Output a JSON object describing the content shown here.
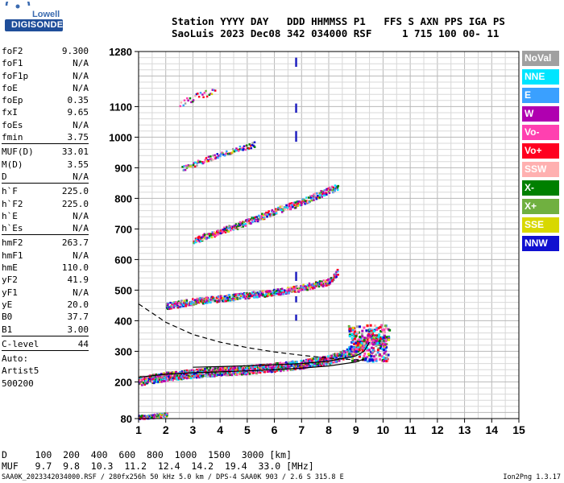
{
  "logo": {
    "brand": "Lowell",
    "product": "DIGISONDE"
  },
  "header": {
    "line1": "Station YYYY DAY   DDD HHMMSS P1   FFS S AXN PPS IGA PS",
    "line2": "SaoLuis 2023 Dec08 342 034000 RSF     1 715 100 00- 11"
  },
  "params": [
    {
      "label": "foF2",
      "value": "9.300"
    },
    {
      "label": "foF1",
      "value": "N/A"
    },
    {
      "label": "foF1p",
      "value": "N/A"
    },
    {
      "label": "foE",
      "value": "N/A"
    },
    {
      "label": "foEp",
      "value": "0.35"
    },
    {
      "label": "fxI",
      "value": "9.65"
    },
    {
      "label": "foEs",
      "value": "N/A"
    },
    {
      "label": "fmin",
      "value": "3.75"
    },
    {
      "label": "MUF(D)",
      "value": "33.01"
    },
    {
      "label": "M(D)",
      "value": "3.55"
    },
    {
      "label": "D",
      "value": "N/A"
    },
    {
      "label": "h`F",
      "value": "225.0"
    },
    {
      "label": "h`F2",
      "value": "225.0"
    },
    {
      "label": "h`E",
      "value": "N/A"
    },
    {
      "label": "h`Es",
      "value": "N/A"
    },
    {
      "label": "hmF2",
      "value": "263.7"
    },
    {
      "label": "hmF1",
      "value": "N/A"
    },
    {
      "label": "hmE",
      "value": "110.0"
    },
    {
      "label": "yF2",
      "value": "41.9"
    },
    {
      "label": "yF1",
      "value": "N/A"
    },
    {
      "label": "yE",
      "value": "20.0"
    },
    {
      "label": "B0",
      "value": "37.7"
    },
    {
      "label": "B1",
      "value": "3.00"
    },
    {
      "label": "C-level",
      "value": "44"
    }
  ],
  "auto": {
    "line1": "Auto:",
    "line2": "Artist5",
    "line3": "500200"
  },
  "legend": [
    {
      "label": "NoVal",
      "color": "#a0a0a0"
    },
    {
      "label": "NNE",
      "color": "#00e5ff"
    },
    {
      "label": "E",
      "color": "#3aa0ff"
    },
    {
      "label": "W",
      "color": "#b000b0"
    },
    {
      "label": "Vo-",
      "color": "#ff40b0"
    },
    {
      "label": "Vo+",
      "color": "#ff0020"
    },
    {
      "label": "SSW",
      "color": "#ffb0b0"
    },
    {
      "label": "X-",
      "color": "#008000"
    },
    {
      "label": "X+",
      "color": "#70b040"
    },
    {
      "label": "SSE",
      "color": "#d8d800"
    },
    {
      "label": "NNW",
      "color": "#1010d0"
    }
  ],
  "chart_data": {
    "type": "scatter",
    "xlabel": "",
    "ylabel": "",
    "xlim": [
      1,
      15
    ],
    "ylim": [
      80,
      1280
    ],
    "x_ticks": [
      1,
      2,
      3,
      4,
      5,
      6,
      7,
      8,
      9,
      10,
      11,
      12,
      13,
      14,
      15
    ],
    "y_ticks": [
      80,
      200,
      300,
      400,
      500,
      600,
      700,
      800,
      900,
      1000,
      1100,
      1280
    ],
    "grid": true,
    "traces": [
      {
        "name": "F-trace",
        "points": [
          [
            1.0,
            205
          ],
          [
            2.0,
            220
          ],
          [
            3.0,
            230
          ],
          [
            4.0,
            237
          ],
          [
            5.0,
            242
          ],
          [
            6.0,
            250
          ],
          [
            7.0,
            260
          ],
          [
            8.0,
            275
          ],
          [
            8.8,
            300
          ],
          [
            9.3,
            330
          ],
          [
            9.6,
            345
          ],
          [
            10.0,
            330
          ]
        ]
      },
      {
        "name": "E-trace",
        "points": [
          [
            1.0,
            87
          ],
          [
            1.5,
            90
          ],
          [
            2.0,
            95
          ]
        ]
      },
      {
        "name": "2F-trace",
        "points": [
          [
            2.0,
            450
          ],
          [
            3.0,
            465
          ],
          [
            4.0,
            475
          ],
          [
            5.0,
            485
          ],
          [
            6.0,
            495
          ],
          [
            7.0,
            510
          ],
          [
            8.0,
            530
          ],
          [
            8.3,
            560
          ],
          [
            8.1,
            600
          ]
        ]
      },
      {
        "name": "3F-trace",
        "points": [
          [
            3.0,
            665
          ],
          [
            4.0,
            695
          ],
          [
            5.0,
            725
          ],
          [
            6.0,
            760
          ],
          [
            7.0,
            790
          ],
          [
            7.5,
            810
          ],
          [
            8.3,
            840
          ]
        ]
      },
      {
        "name": "4F-trace",
        "points": [
          [
            2.6,
            900
          ],
          [
            3.5,
            930
          ],
          [
            4.5,
            960
          ],
          [
            5.3,
            980
          ]
        ]
      },
      {
        "name": "5F-trace",
        "points": [
          [
            2.5,
            1110
          ],
          [
            3.2,
            1140
          ],
          [
            3.8,
            1150
          ]
        ]
      }
    ],
    "profile_curves": {
      "lower_solid": [
        [
          1.0,
          215
        ],
        [
          2.0,
          225
        ],
        [
          3.0,
          230
        ],
        [
          4.0,
          233
        ],
        [
          5.0,
          236
        ],
        [
          6.0,
          240
        ],
        [
          7.0,
          245
        ],
        [
          8.0,
          252
        ],
        [
          9.0,
          265
        ],
        [
          9.3,
          275
        ]
      ],
      "upper_solid": [
        [
          3.0,
          248
        ],
        [
          4.0,
          250
        ],
        [
          5.0,
          253
        ],
        [
          6.0,
          256
        ],
        [
          7.0,
          260
        ],
        [
          8.0,
          268
        ],
        [
          9.0,
          285
        ],
        [
          9.3,
          300
        ],
        [
          9.5,
          330
        ]
      ],
      "dashed": [
        [
          1.0,
          455
        ],
        [
          1.5,
          425
        ],
        [
          2.0,
          395
        ],
        [
          3.0,
          355
        ],
        [
          4.0,
          330
        ],
        [
          5.0,
          312
        ],
        [
          6.0,
          298
        ],
        [
          7.0,
          287
        ],
        [
          8.0,
          278
        ],
        [
          9.0,
          272
        ],
        [
          9.3,
          270
        ]
      ]
    },
    "vertical_marker": {
      "x": 6.8,
      "segments": [
        [
          1230,
          1260
        ],
        [
          1080,
          1110
        ],
        [
          985,
          1020
        ],
        [
          530,
          560
        ],
        [
          460,
          480
        ],
        [
          400,
          420
        ]
      ]
    }
  },
  "footer": {
    "d_row": "D     100  200  400  600  800  1000  1500  3000 [km]",
    "muf_row": "MUF   9.7  9.8  10.3  11.2  12.4  14.2  19.4  33.0 [MHz]",
    "file": "SAA0K_2023342034000.RSF / 280fx256h 50 kHz 5.0 km / DPS-4 SAA0K 903 / 2.6 S 315.8 E",
    "version": "Ion2Png 1.3.17"
  }
}
